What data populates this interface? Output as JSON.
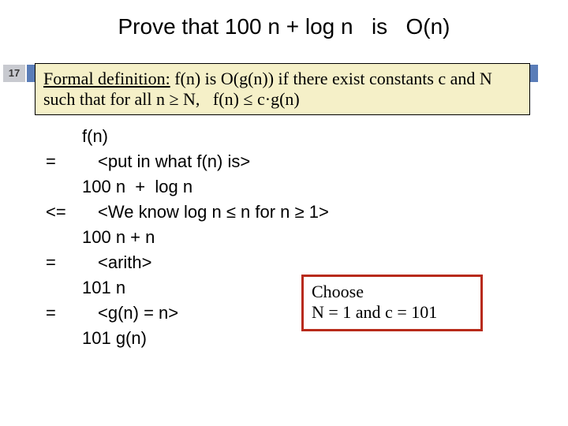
{
  "title": "Prove that 100 n + log n   is   O(n)",
  "page_number": "17",
  "definition": {
    "label": "Formal definition:",
    "text_rest": " f(n) is O(g(n)) if there exist constants c and N such that for all n ≥ N,   f(n) ≤ c·g(n)"
  },
  "proof": {
    "l0": "f(n)",
    "op1": "=",
    "l1": "<put in what f(n) is>",
    "l2": "100 n  +  log n",
    "op2": "<=",
    "l3": "<We know log n ≤ n for n ≥ 1>",
    "l4": "100 n + n",
    "op3": "=",
    "l5": "<arith>",
    "l6": "101 n",
    "op4": "=",
    "l7": "<g(n) = n>",
    "l8": "101 g(n)"
  },
  "choose": {
    "line1": "Choose",
    "line2": "N = 1 and c = 101"
  },
  "colors": {
    "page_num_bg": "#c8cad0",
    "band": "#5a7db8",
    "def_bg": "#f5f0c8",
    "choose_border": "#b82a1a"
  }
}
